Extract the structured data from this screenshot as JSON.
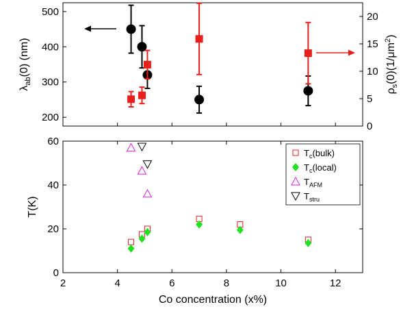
{
  "chart_data": [
    {
      "type": "scatter",
      "panel": "top",
      "xlim": [
        2,
        13
      ],
      "x_ticks": [],
      "ylim_left": [
        175,
        525
      ],
      "y_ticks_left": [
        "200",
        "300",
        "400",
        "500"
      ],
      "ylabel_left": {
        "main": "λ",
        "sub": "ab",
        "rest": "(0) (nm)"
      },
      "ylim_right": [
        0,
        22.5
      ],
      "y_ticks_right": [
        "0",
        "5",
        "10",
        "15",
        "20"
      ],
      "ylabel_right": {
        "main": "ρ",
        "sub": "s",
        "rest": "(0)(1/μm",
        "sup": "2",
        "end": ")"
      },
      "grid": false,
      "series": [
        {
          "axis": "left",
          "marker": "circle",
          "color": "#000000",
          "points": [
            {
              "x": 4.5,
              "y": 450,
              "err": 68
            },
            {
              "x": 4.9,
              "y": 400,
              "err": 60
            },
            {
              "x": 5.1,
              "y": 320,
              "err": 38
            },
            {
              "x": 7.0,
              "y": 250,
              "err": 38
            },
            {
              "x": 11.0,
              "y": 275,
              "err": 42
            }
          ]
        },
        {
          "axis": "right",
          "marker": "square",
          "color": "#e8201c",
          "points": [
            {
              "x": 4.5,
              "y": 4.9,
              "err": 1.4
            },
            {
              "x": 4.9,
              "y": 5.6,
              "err": 1.5
            },
            {
              "x": 5.1,
              "y": 11.2,
              "err": 2.6
            },
            {
              "x": 7.0,
              "y": 15.9,
              "err": 6.5
            },
            {
              "x": 11.0,
              "y": 13.3,
              "err": 5.6
            }
          ]
        }
      ],
      "annotations": [
        {
          "type": "arrow",
          "direction": "left",
          "color": "#000000",
          "points_to": "left-axis"
        },
        {
          "type": "arrow",
          "direction": "right",
          "color": "#e8201c",
          "points_to": "right-axis"
        }
      ]
    },
    {
      "type": "scatter",
      "panel": "bottom",
      "xlabel": "Co concentration (x%)",
      "xlim": [
        2,
        13
      ],
      "x_ticks": [
        "2",
        "4",
        "6",
        "8",
        "10",
        "12"
      ],
      "ylabel": "T(K)",
      "ylim": [
        0,
        60
      ],
      "y_ticks": [
        "0",
        "20",
        "40",
        "60"
      ],
      "grid": false,
      "legend_position": "top-right",
      "series": [
        {
          "name": "T",
          "sub": "c",
          "suffix": "(bulk)",
          "marker": "square-open",
          "color": "#e8201c",
          "points": [
            {
              "x": 4.5,
              "y": 14
            },
            {
              "x": 4.9,
              "y": 17.5
            },
            {
              "x": 5.1,
              "y": 20
            },
            {
              "x": 7.0,
              "y": 24.5
            },
            {
              "x": 8.5,
              "y": 22
            },
            {
              "x": 11.0,
              "y": 15
            }
          ]
        },
        {
          "name": "T",
          "sub": "c",
          "suffix": "(local)",
          "marker": "diamond-filled",
          "color": "#22e022",
          "points": [
            {
              "x": 4.5,
              "y": 11
            },
            {
              "x": 4.9,
              "y": 15.5
            },
            {
              "x": 5.1,
              "y": 18.5
            },
            {
              "x": 7.0,
              "y": 22
            },
            {
              "x": 8.5,
              "y": 19.5
            },
            {
              "x": 11.0,
              "y": 13.5
            }
          ]
        },
        {
          "name": "T",
          "sub": "AFM",
          "suffix": "",
          "marker": "triangle-up-open",
          "color": "#e020e0",
          "points": [
            {
              "x": 4.5,
              "y": 57
            },
            {
              "x": 4.9,
              "y": 46.5
            },
            {
              "x": 5.1,
              "y": 36
            }
          ]
        },
        {
          "name": "T",
          "sub": "stru",
          "suffix": "",
          "marker": "triangle-down-open",
          "color": "#000000",
          "points": [
            {
              "x": 4.9,
              "y": 57.5
            },
            {
              "x": 5.1,
              "y": 49.5
            }
          ]
        }
      ]
    }
  ]
}
